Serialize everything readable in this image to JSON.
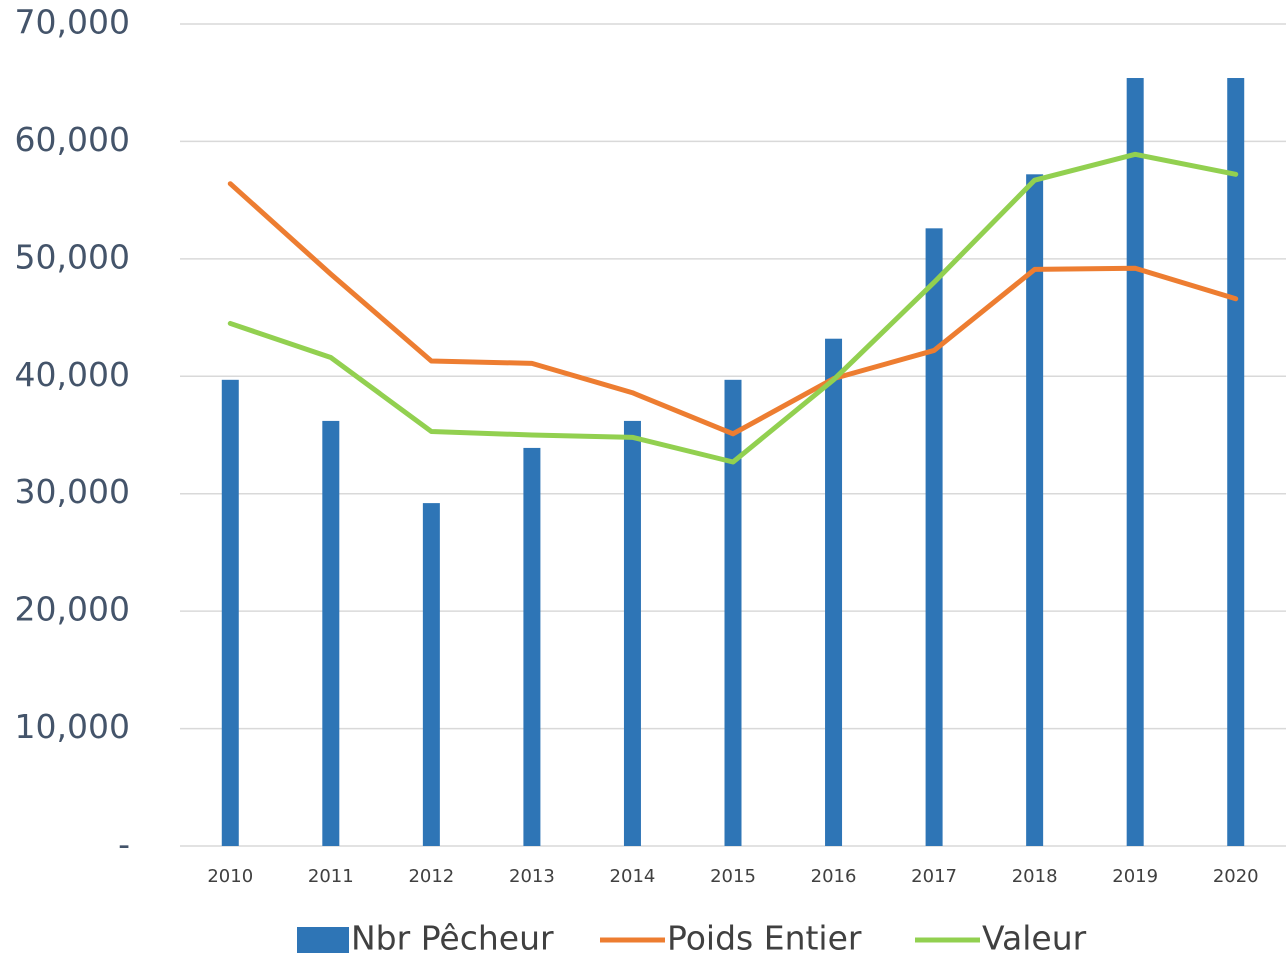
{
  "chart_data": {
    "type": "bar-line",
    "categories": [
      "2010",
      "2011",
      "2012",
      "2013",
      "2014",
      "2015",
      "2016",
      "2017",
      "2018",
      "2019",
      "2020"
    ],
    "series": [
      {
        "name": "Nbr Pêcheur",
        "type": "bar",
        "color": "#2e75b6",
        "values": [
          39700,
          36200,
          29200,
          33900,
          36200,
          39700,
          43200,
          52600,
          57200,
          65400,
          65400
        ]
      },
      {
        "name": "Poids Entier",
        "type": "line",
        "color": "#ed7d31",
        "values": [
          56400,
          48700,
          41300,
          41100,
          38600,
          35100,
          39800,
          42200,
          49100,
          49200,
          46600
        ]
      },
      {
        "name": "Valeur",
        "type": "line",
        "color": "#92d050",
        "values": [
          44500,
          41600,
          35300,
          35000,
          34800,
          32700,
          39700,
          48000,
          56700,
          58900,
          57200
        ]
      }
    ],
    "ylim": [
      0,
      70000
    ],
    "yticks": [
      {
        "value": 0,
        "label": "-"
      },
      {
        "value": 10000,
        "label": "10,000"
      },
      {
        "value": 20000,
        "label": "20,000"
      },
      {
        "value": 30000,
        "label": "30,000"
      },
      {
        "value": 40000,
        "label": "40,000"
      },
      {
        "value": 50000,
        "label": "50,000"
      },
      {
        "value": 60000,
        "label": "60,000"
      },
      {
        "value": 70000,
        "label": "70,000"
      }
    ],
    "grid": true,
    "legend": "bottom"
  }
}
